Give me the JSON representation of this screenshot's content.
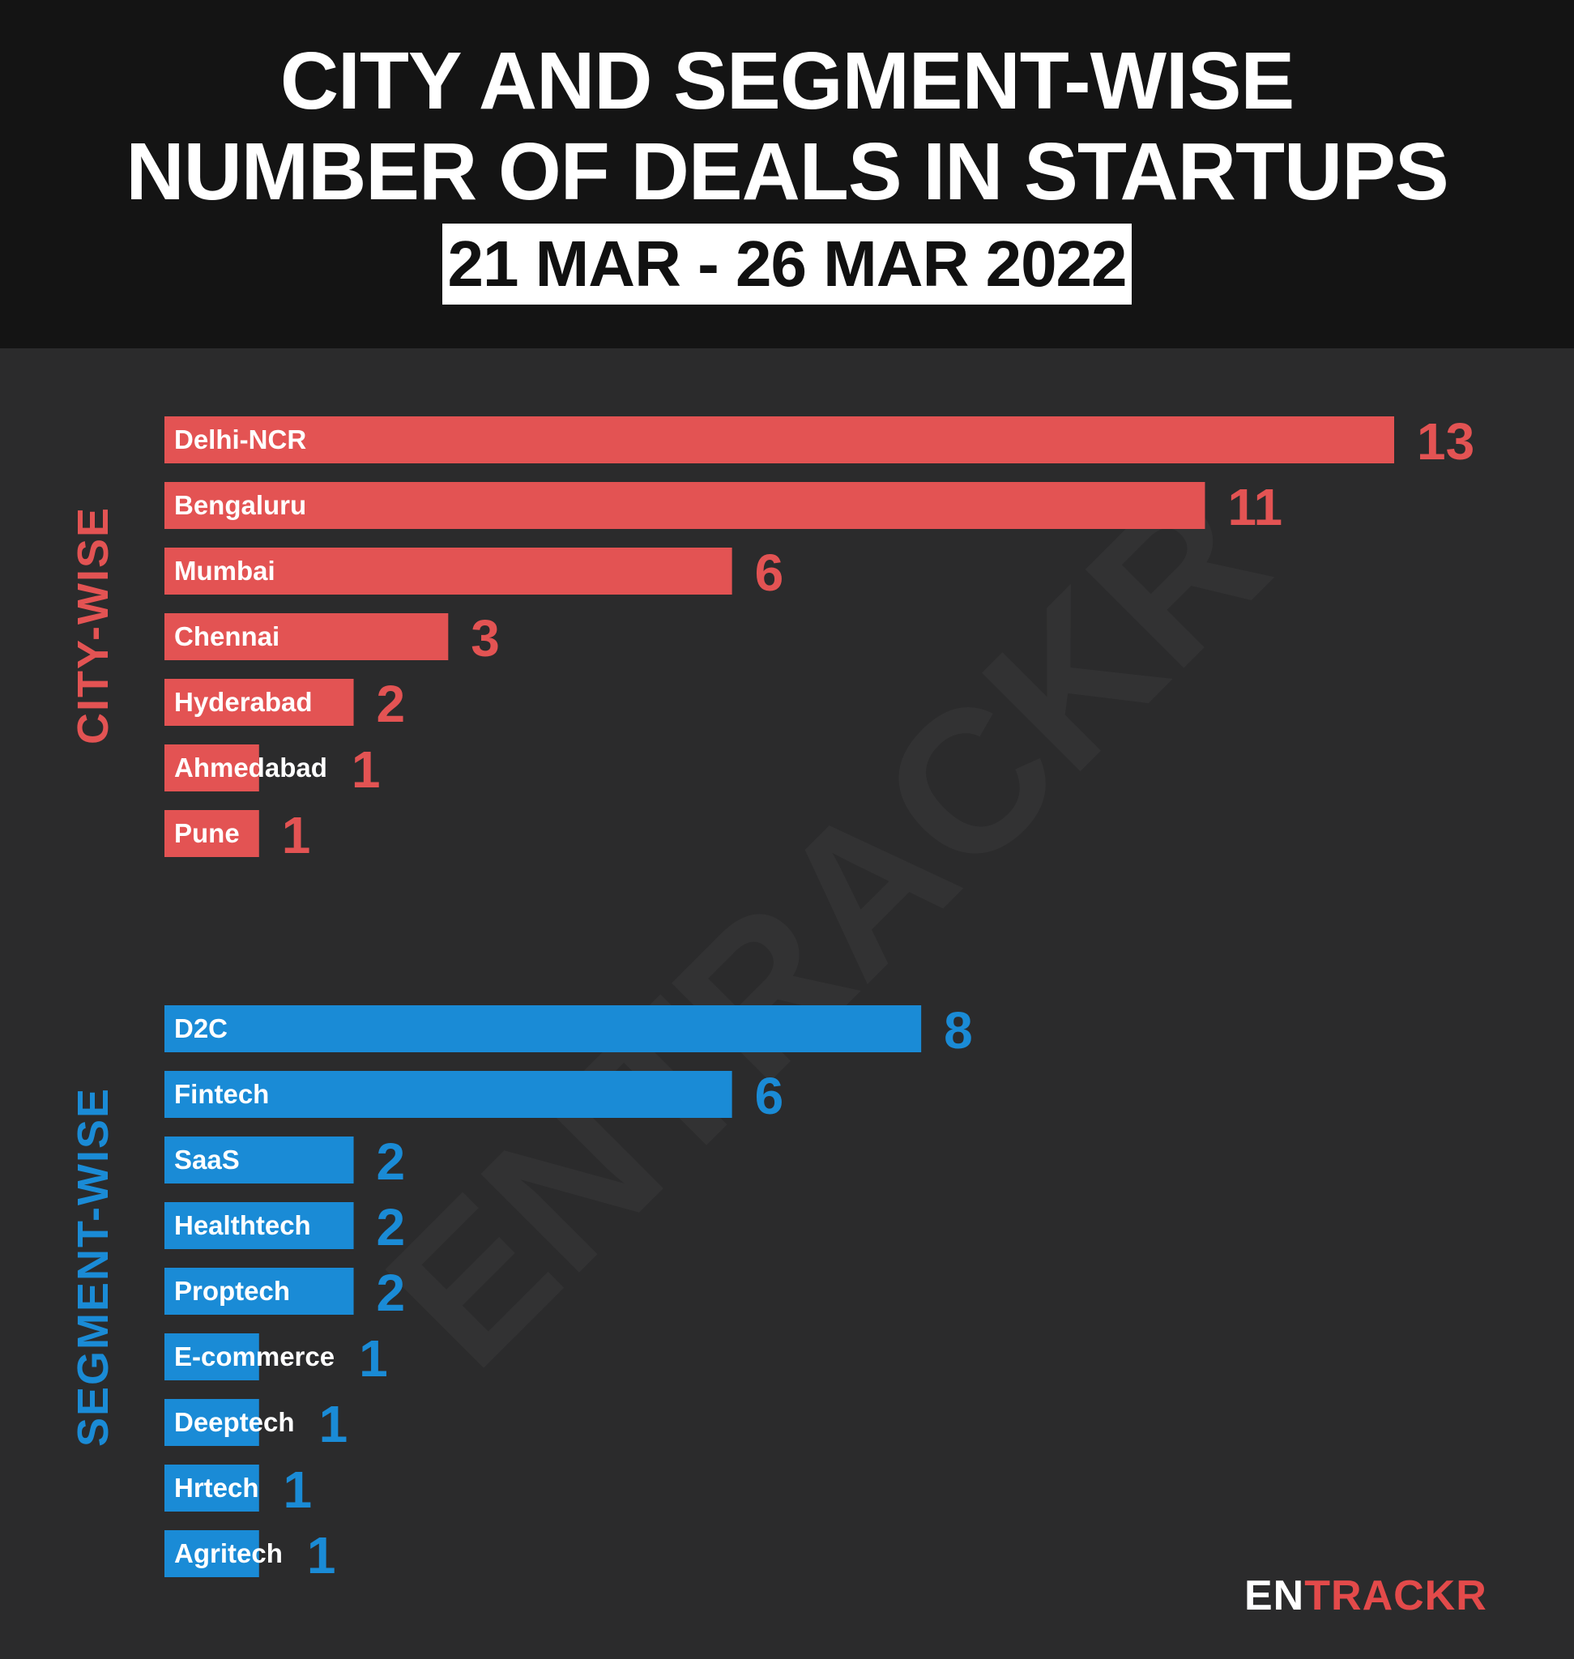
{
  "title": {
    "line1": "CITY AND SEGMENT-WISE",
    "line2": "NUMBER OF DEALS IN STARTUPS",
    "date_range": "21 MAR - 26 MAR 2022"
  },
  "colors": {
    "city": "#e35353",
    "segment": "#1a8bd6"
  },
  "watermark": "ENTRACKR",
  "logo": {
    "part1": "EN",
    "part2": "TRACKR"
  },
  "chart_data": [
    {
      "type": "bar",
      "orientation": "horizontal",
      "group_label": "CITY-WISE",
      "categories": [
        "Delhi-NCR",
        "Bengaluru",
        "Mumbai",
        "Chennai",
        "Hyderabad",
        "Ahmedabad",
        "Pune"
      ],
      "values": [
        13,
        11,
        6,
        3,
        2,
        1,
        1
      ],
      "xlim": [
        0,
        13
      ]
    },
    {
      "type": "bar",
      "orientation": "horizontal",
      "group_label": "SEGMENT-WISE",
      "categories": [
        "D2C",
        "Fintech",
        "SaaS",
        "Healthtech",
        "Proptech",
        "E-commerce",
        "Deeptech",
        "Hrtech",
        "Agritech"
      ],
      "values": [
        8,
        6,
        2,
        2,
        2,
        1,
        1,
        1,
        1
      ],
      "xlim": [
        0,
        13
      ]
    }
  ]
}
